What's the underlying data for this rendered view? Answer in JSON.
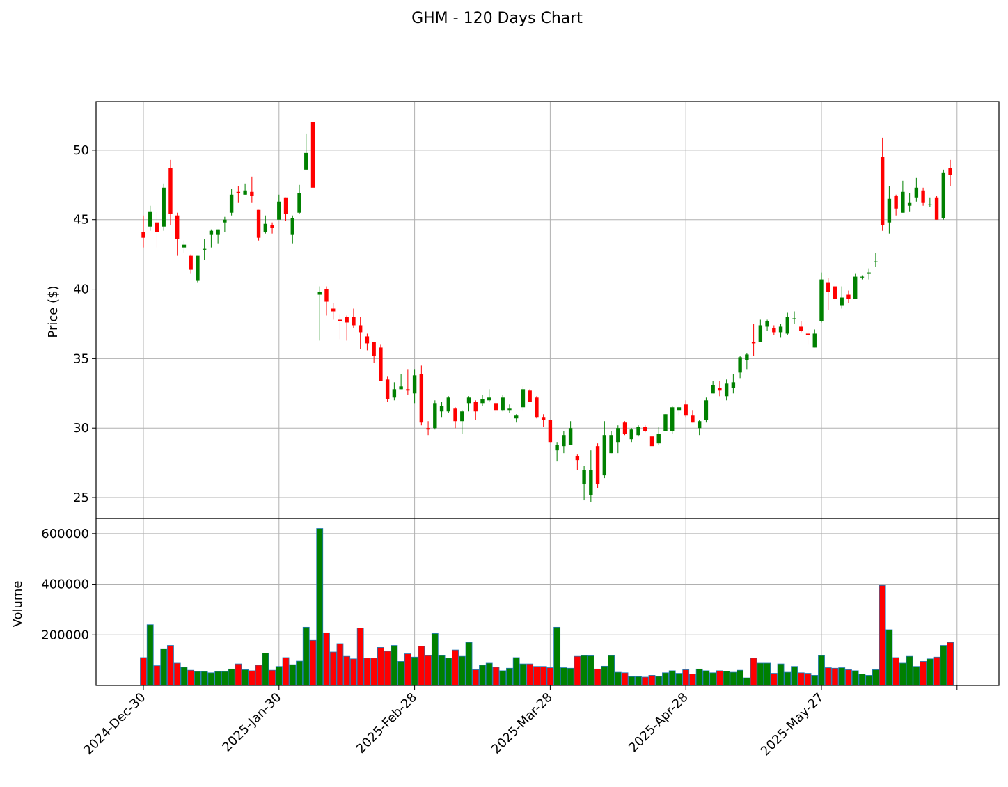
{
  "chart_data": {
    "type": "candlestick",
    "title": "GHM - 120 Days Chart",
    "price_panel": {
      "ylabel": "Price ($)",
      "ylim": [
        23.5,
        53.5
      ],
      "yticks": [
        25,
        30,
        35,
        40,
        45,
        50
      ],
      "ytick_labels": [
        "25",
        "30",
        "35",
        "40",
        "45",
        "50"
      ],
      "grid": true
    },
    "volume_panel": {
      "ylabel": "Volume",
      "ylim": [
        0,
        660000
      ],
      "yticks": [
        200000,
        400000,
        600000
      ],
      "ytick_labels": [
        "200000",
        "400000",
        "600000"
      ],
      "grid": true
    },
    "xlabels": [
      "2024-Dec-30",
      "2025-Jan-30",
      "2025-Feb-28",
      "2025-Mar-28",
      "2025-Apr-28",
      "2025-May-27"
    ],
    "xlabel_indices": [
      0,
      20,
      40,
      60,
      80,
      100
    ],
    "colors": {
      "up": "#008000",
      "down": "#ff0000",
      "volume_edge": "#1f77b4",
      "grid": "#b0b0b0"
    },
    "candles": [
      [
        44.1,
        45.3,
        43.0,
        43.7,
        110000
      ],
      [
        44.5,
        46.0,
        44.2,
        45.6,
        240000
      ],
      [
        44.8,
        45.6,
        43.0,
        44.1,
        78000
      ],
      [
        44.5,
        47.6,
        44.2,
        47.3,
        145000
      ],
      [
        48.7,
        49.3,
        44.6,
        45.4,
        158000
      ],
      [
        45.3,
        45.5,
        42.4,
        43.6,
        88000
      ],
      [
        43.0,
        43.5,
        42.6,
        43.2,
        72000
      ],
      [
        42.4,
        42.5,
        41.1,
        41.4,
        60000
      ],
      [
        40.6,
        42.4,
        40.5,
        42.4,
        55000
      ],
      [
        42.9,
        43.6,
        42.1,
        42.9,
        55000
      ],
      [
        43.9,
        44.3,
        43.0,
        44.2,
        50000
      ],
      [
        43.9,
        44.3,
        43.3,
        44.3,
        55000
      ],
      [
        44.8,
        45.2,
        44.1,
        45.0,
        55000
      ],
      [
        45.5,
        47.2,
        45.3,
        46.8,
        65000
      ],
      [
        47.0,
        47.4,
        46.2,
        46.9,
        85000
      ],
      [
        46.8,
        47.6,
        46.8,
        47.1,
        62000
      ],
      [
        47.0,
        48.1,
        46.2,
        46.7,
        58000
      ],
      [
        45.7,
        45.7,
        43.5,
        43.7,
        80000
      ],
      [
        44.1,
        45.3,
        44.0,
        44.7,
        128000
      ],
      [
        44.6,
        44.8,
        44.0,
        44.4,
        60000
      ],
      [
        45.0,
        46.8,
        45.0,
        46.3,
        75000
      ],
      [
        46.6,
        46.6,
        44.9,
        45.4,
        110000
      ],
      [
        43.9,
        45.3,
        43.3,
        45.1,
        82000
      ],
      [
        45.5,
        47.5,
        45.4,
        46.9,
        96000
      ],
      [
        48.6,
        51.2,
        48.6,
        49.8,
        230000
      ],
      [
        52.0,
        52.0,
        46.1,
        47.3,
        178000
      ],
      [
        39.6,
        40.2,
        36.3,
        39.8,
        620000
      ],
      [
        40.0,
        40.2,
        38.1,
        39.1,
        208000
      ],
      [
        38.6,
        39.0,
        37.8,
        38.4,
        132000
      ],
      [
        37.8,
        38.2,
        36.4,
        37.7,
        165000
      ],
      [
        38.0,
        38.1,
        36.3,
        37.6,
        115000
      ],
      [
        38.0,
        38.6,
        37.2,
        37.4,
        105000
      ],
      [
        37.4,
        38.0,
        35.7,
        36.9,
        227000
      ],
      [
        36.6,
        36.8,
        35.6,
        36.1,
        108000
      ],
      [
        36.2,
        36.2,
        34.7,
        35.2,
        108000
      ],
      [
        35.8,
        36.0,
        33.4,
        33.4,
        150000
      ],
      [
        33.5,
        33.7,
        31.9,
        32.1,
        135000
      ],
      [
        32.2,
        33.3,
        32.0,
        32.8,
        158000
      ],
      [
        32.8,
        33.9,
        32.8,
        33.0,
        95000
      ],
      [
        32.8,
        34.2,
        32.4,
        32.7,
        125000
      ],
      [
        32.5,
        34.2,
        31.8,
        33.8,
        112000
      ],
      [
        33.9,
        34.5,
        30.2,
        30.4,
        155000
      ],
      [
        30.0,
        30.5,
        29.5,
        29.9,
        118000
      ],
      [
        30.0,
        32.0,
        29.9,
        31.8,
        205000
      ],
      [
        31.2,
        31.9,
        30.8,
        31.6,
        118000
      ],
      [
        31.2,
        32.3,
        31.1,
        32.2,
        108000
      ],
      [
        31.4,
        31.5,
        30.0,
        30.5,
        140000
      ],
      [
        30.5,
        31.3,
        29.6,
        31.2,
        115000
      ],
      [
        31.8,
        32.3,
        31.2,
        32.2,
        170000
      ],
      [
        31.9,
        32.0,
        30.6,
        31.2,
        62000
      ],
      [
        31.8,
        32.4,
        31.6,
        32.1,
        80000
      ],
      [
        32.0,
        32.8,
        31.9,
        32.2,
        88000
      ],
      [
        31.8,
        32.0,
        31.1,
        31.3,
        72000
      ],
      [
        31.3,
        32.4,
        31.2,
        32.2,
        58000
      ],
      [
        31.3,
        31.7,
        31.1,
        31.4,
        68000
      ],
      [
        30.7,
        31.0,
        30.4,
        30.9,
        110000
      ],
      [
        31.5,
        33.0,
        31.3,
        32.8,
        85000
      ],
      [
        32.7,
        32.8,
        31.9,
        31.9,
        85000
      ],
      [
        32.2,
        32.3,
        30.7,
        30.8,
        75000
      ],
      [
        30.8,
        31.0,
        30.1,
        30.6,
        75000
      ],
      [
        30.6,
        30.6,
        29.0,
        29.0,
        70000
      ],
      [
        28.4,
        29.0,
        27.6,
        28.8,
        230000
      ],
      [
        28.7,
        29.8,
        28.2,
        29.5,
        70000
      ],
      [
        28.8,
        30.5,
        28.8,
        30.0,
        68000
      ],
      [
        28.0,
        28.1,
        27.0,
        27.7,
        115000
      ],
      [
        26.0,
        27.3,
        24.8,
        27.0,
        118000
      ],
      [
        25.2,
        28.4,
        24.7,
        27.0,
        117000
      ],
      [
        28.7,
        28.9,
        25.7,
        26.0,
        65000
      ],
      [
        26.6,
        30.5,
        26.4,
        29.5,
        76000
      ],
      [
        28.2,
        29.8,
        28.2,
        29.5,
        118000
      ],
      [
        29.0,
        30.2,
        28.2,
        30.0,
        52000
      ],
      [
        30.4,
        30.5,
        29.5,
        29.6,
        50000
      ],
      [
        29.2,
        30.0,
        29.0,
        29.9,
        35000
      ],
      [
        29.5,
        30.2,
        29.4,
        30.1,
        35000
      ],
      [
        30.1,
        30.2,
        29.7,
        29.8,
        33000
      ],
      [
        29.4,
        29.4,
        28.5,
        28.7,
        40000
      ],
      [
        28.9,
        30.1,
        28.8,
        29.6,
        36000
      ],
      [
        29.8,
        31.0,
        29.8,
        31.0,
        50000
      ],
      [
        29.8,
        31.6,
        29.6,
        31.5,
        58000
      ],
      [
        31.3,
        31.6,
        30.9,
        31.5,
        48000
      ],
      [
        31.7,
        32.0,
        30.8,
        30.9,
        62000
      ],
      [
        30.9,
        31.3,
        30.4,
        30.4,
        45000
      ],
      [
        30.0,
        30.6,
        29.5,
        30.5,
        65000
      ],
      [
        30.6,
        32.2,
        30.4,
        32.0,
        58000
      ],
      [
        32.5,
        33.4,
        32.5,
        33.1,
        50000
      ],
      [
        32.9,
        33.4,
        32.3,
        32.7,
        58000
      ],
      [
        32.3,
        33.5,
        32.0,
        33.2,
        56000
      ],
      [
        32.9,
        33.9,
        32.5,
        33.3,
        52000
      ],
      [
        34.0,
        35.2,
        33.6,
        35.1,
        60000
      ],
      [
        34.9,
        35.4,
        34.2,
        35.3,
        30000
      ],
      [
        36.2,
        37.5,
        35.2,
        36.1,
        108000
      ],
      [
        36.2,
        37.8,
        36.2,
        37.4,
        88000
      ],
      [
        37.3,
        37.8,
        37.0,
        37.7,
        88000
      ],
      [
        37.2,
        37.4,
        36.7,
        36.9,
        48000
      ],
      [
        36.9,
        37.5,
        36.5,
        37.3,
        85000
      ],
      [
        36.8,
        38.3,
        36.7,
        38.0,
        52000
      ],
      [
        37.9,
        38.4,
        37.5,
        37.9,
        75000
      ],
      [
        37.3,
        37.7,
        36.9,
        37.0,
        50000
      ],
      [
        36.8,
        37.1,
        36.0,
        36.7,
        48000
      ],
      [
        35.8,
        37.1,
        35.8,
        36.8,
        40000
      ],
      [
        37.7,
        41.2,
        37.6,
        40.7,
        118000
      ],
      [
        40.5,
        40.8,
        38.5,
        39.8,
        70000
      ],
      [
        40.2,
        40.3,
        39.2,
        39.3,
        68000
      ],
      [
        38.8,
        40.2,
        38.6,
        39.4,
        70000
      ],
      [
        39.6,
        39.9,
        39.0,
        39.3,
        62000
      ],
      [
        39.3,
        41.1,
        39.3,
        40.9,
        58000
      ],
      [
        40.9,
        41.0,
        40.7,
        40.9,
        45000
      ],
      [
        41.1,
        41.5,
        40.7,
        41.2,
        40000
      ],
      [
        42.0,
        42.6,
        41.6,
        42.0,
        62000
      ],
      [
        49.5,
        50.9,
        44.2,
        44.6,
        395000
      ],
      [
        44.8,
        47.4,
        44.0,
        46.5,
        220000
      ],
      [
        46.7,
        46.8,
        45.3,
        45.8,
        110000
      ],
      [
        45.5,
        47.8,
        45.5,
        47.0,
        88000
      ],
      [
        46.0,
        46.9,
        45.6,
        46.2,
        115000
      ],
      [
        46.6,
        48.0,
        46.3,
        47.3,
        75000
      ],
      [
        47.1,
        47.3,
        46.0,
        46.2,
        95000
      ],
      [
        46.1,
        46.6,
        45.9,
        46.1,
        105000
      ],
      [
        46.6,
        46.7,
        45.0,
        45.0,
        112000
      ],
      [
        45.1,
        48.6,
        45.0,
        48.4,
        158000
      ],
      [
        48.7,
        49.3,
        47.4,
        48.2,
        170000
      ]
    ]
  }
}
